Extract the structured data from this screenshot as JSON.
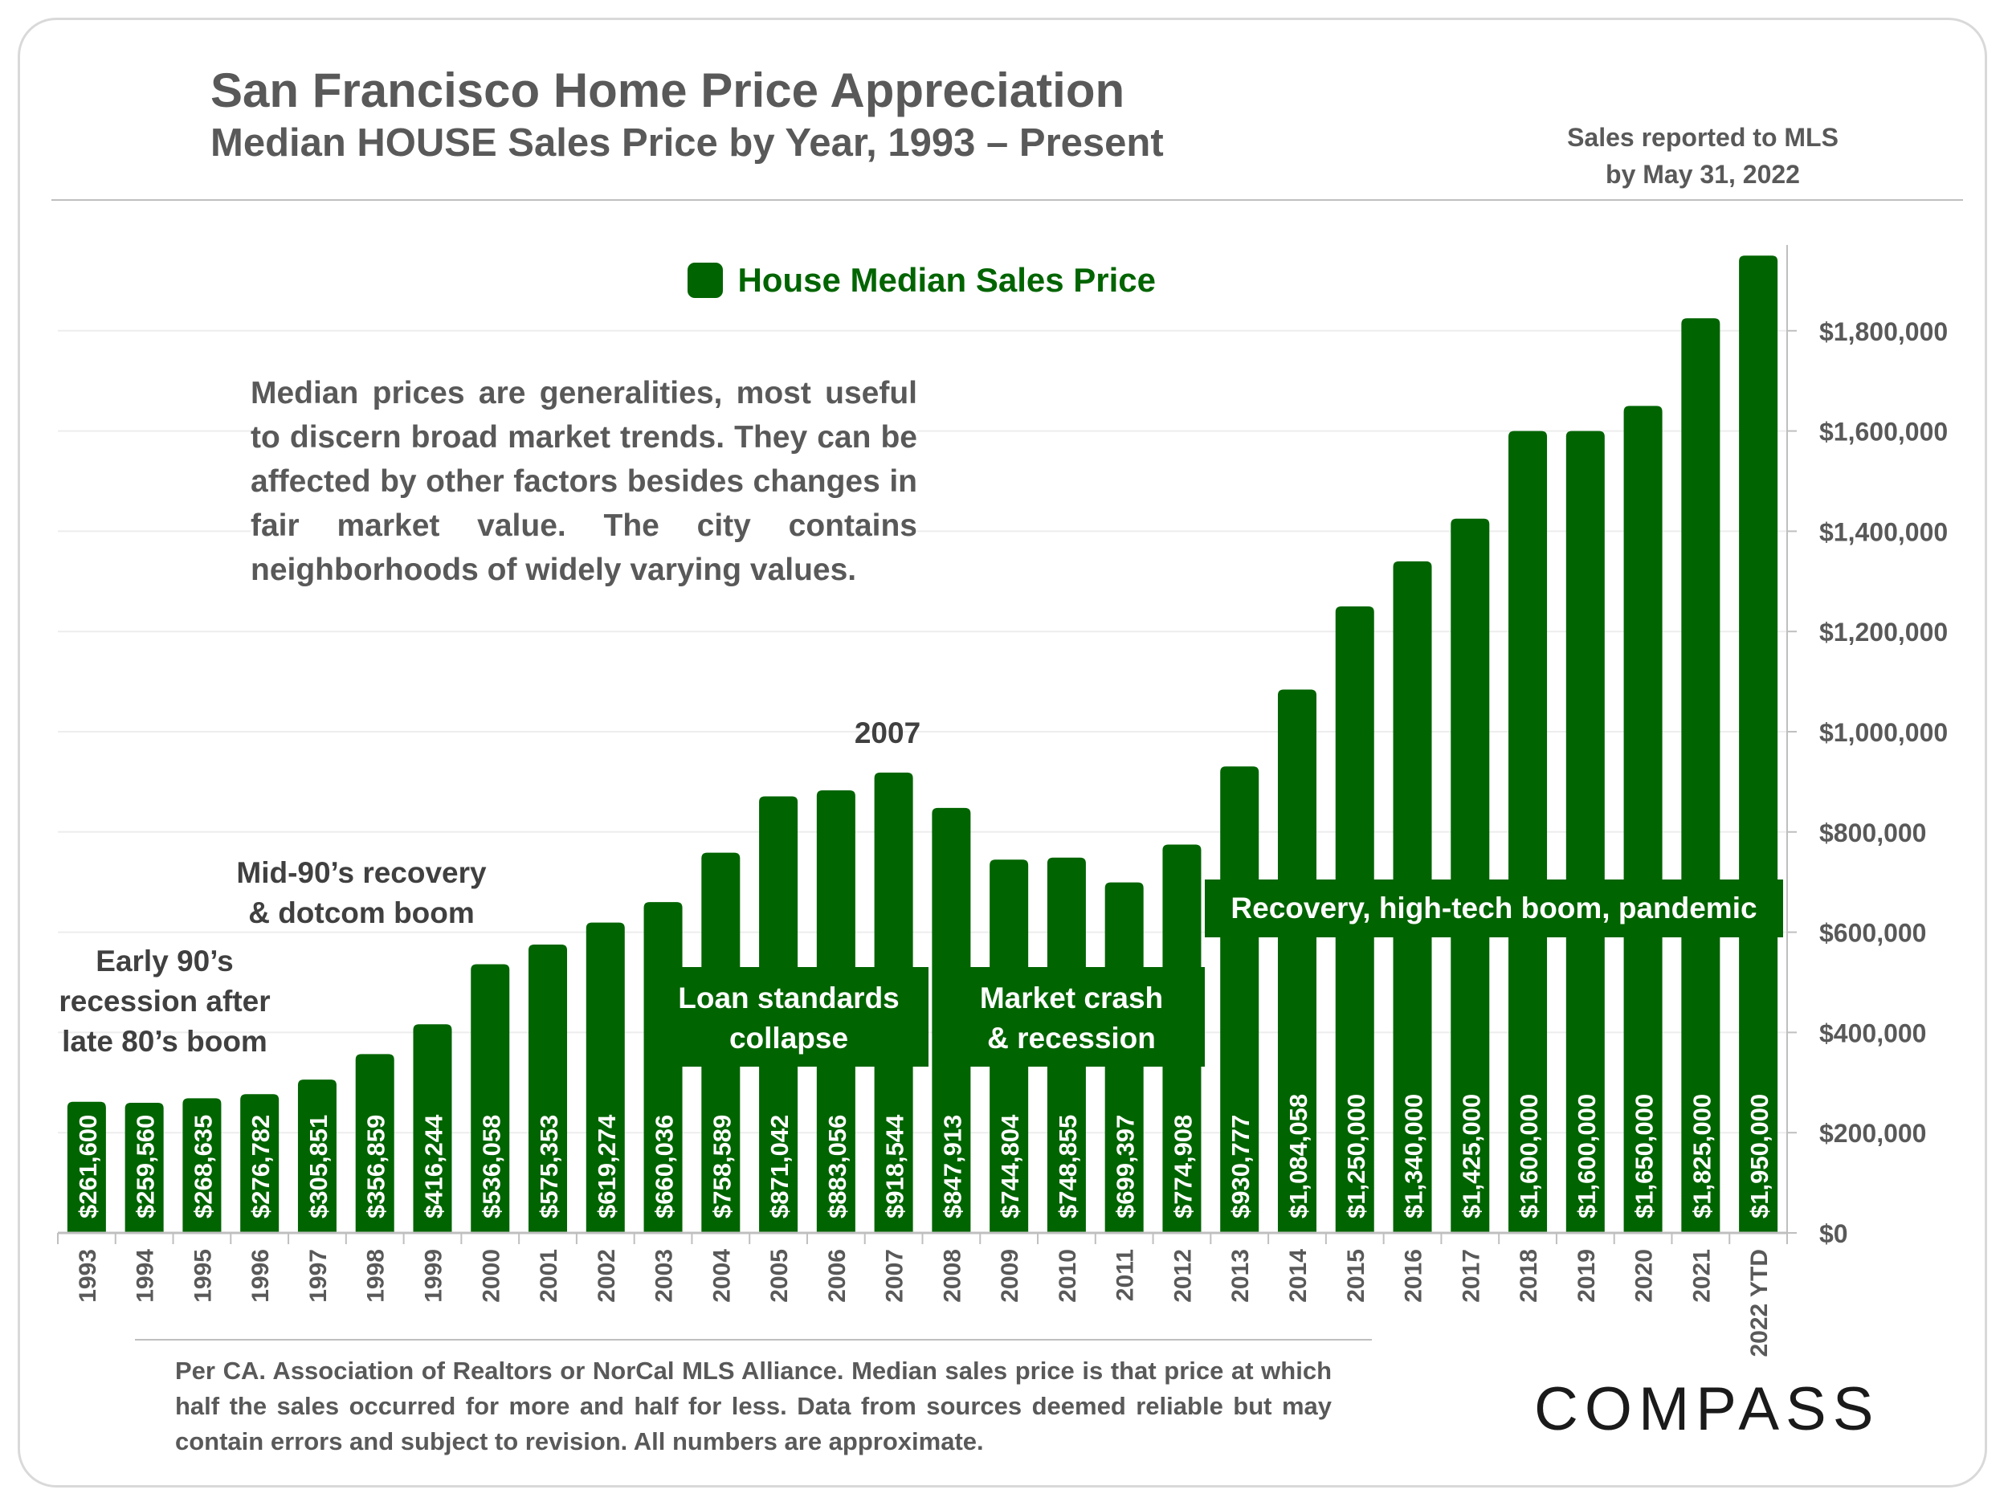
{
  "header": {
    "title": "San Francisco Home Price Appreciation",
    "subtitle": "Median HOUSE Sales Price by Year, 1993 – Present",
    "note_line1": "Sales reported to MLS",
    "note_line2": "by May 31, 2022"
  },
  "legend": {
    "label": "House Median Sales Price"
  },
  "description": "Median prices are generalities, most useful to discern broad market trends. They can be affected by other factors besides changes in fair market value. The city contains neighborhoods of widely varying values.",
  "annotations": {
    "early90s_l1": "Early 90’s",
    "early90s_l2": "recession after",
    "early90s_l3": "late 80’s boom",
    "mid90s_l1": "Mid-90’s recovery",
    "mid90s_l2": "& dotcom boom",
    "peak": "2007",
    "loan_l1": "Loan standards",
    "loan_l2": "collapse",
    "crash_l1": "Market crash",
    "crash_l2": "& recession",
    "recovery": "Recovery, high-tech boom, pandemic"
  },
  "footer": "Per CA. Association of Realtors or NorCal MLS Alliance. Median sales price is that price at which half the sales occurred for more and half for less. Data from sources deemed reliable but may contain errors and subject to revision. All numbers are approximate.",
  "brand": {
    "logo_text": "COMPASS"
  },
  "colors": {
    "bar": "#006400",
    "text": "#595959",
    "grid": "#ededed"
  },
  "chart_data": {
    "type": "bar",
    "title": "San Francisco Home Price Appreciation",
    "xlabel": "",
    "ylabel": "",
    "ylim": [
      0,
      2000000
    ],
    "yticks": [
      0,
      200000,
      400000,
      600000,
      800000,
      1000000,
      1200000,
      1400000,
      1600000,
      1800000
    ],
    "ytick_labels": [
      "$0",
      "$200,000",
      "$400,000",
      "$600,000",
      "$800,000",
      "$1,000,000",
      "$1,200,000",
      "$1,400,000",
      "$1,600,000",
      "$1,800,000"
    ],
    "categories": [
      "1993",
      "1994",
      "1995",
      "1996",
      "1997",
      "1998",
      "1999",
      "2000",
      "2001",
      "2002",
      "2003",
      "2004",
      "2005",
      "2006",
      "2007",
      "2008",
      "2009",
      "2010",
      "2011",
      "2012",
      "2013",
      "2014",
      "2015",
      "2016",
      "2017",
      "2018",
      "2019",
      "2020",
      "2021",
      "2022 YTD"
    ],
    "series": [
      {
        "name": "House Median Sales Price",
        "values": [
          261600,
          259560,
          268635,
          276782,
          305851,
          356859,
          416244,
          536058,
          575353,
          619274,
          660036,
          758589,
          871042,
          883056,
          918544,
          847913,
          744804,
          748855,
          699397,
          774908,
          930777,
          1084058,
          1250000,
          1340000,
          1425000,
          1600000,
          1600000,
          1650000,
          1825000,
          1950000
        ],
        "labels": [
          "$261,600",
          "$259,560",
          "$268,635",
          "$276,782",
          "$305,851",
          "$356,859",
          "$416,244",
          "$536,058",
          "$575,353",
          "$619,274",
          "$660,036",
          "$758,589",
          "$871,042",
          "$883,056",
          "$918,544",
          "$847,913",
          "$744,804",
          "$748,855",
          "$699,397",
          "$774,908",
          "$930,777",
          "$1,084,058",
          "$1,250,000",
          "$1,340,000",
          "$1,425,000",
          "$1,600,000",
          "$1,600,000",
          "$1,650,000",
          "$1,825,000",
          "$1,950,000"
        ]
      }
    ],
    "legend_position": "top-center",
    "grid": true
  }
}
